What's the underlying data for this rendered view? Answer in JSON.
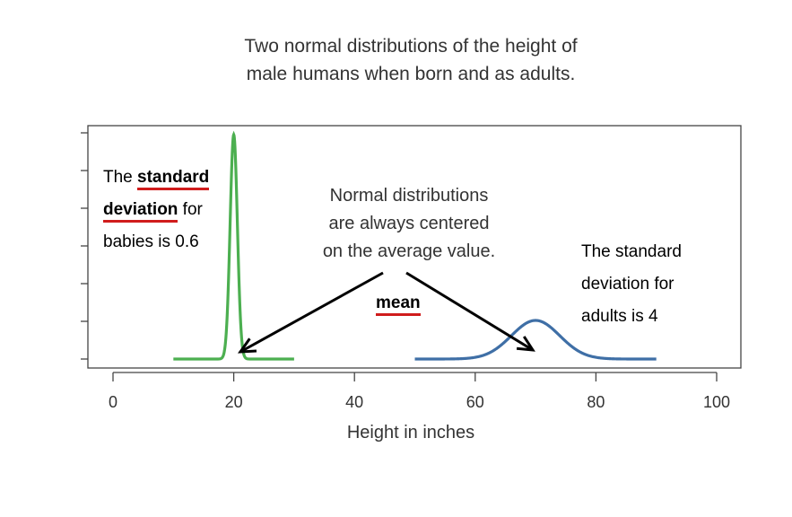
{
  "chart_data": {
    "type": "line",
    "title_lines": [
      "Two normal distributions of the height of",
      "male humans when born and as adults."
    ],
    "xlabel": "Height in inches",
    "ylabel": "",
    "xlim": [
      0,
      100
    ],
    "x_ticks": [
      0,
      20,
      40,
      60,
      80,
      100
    ],
    "grid": false,
    "series": [
      {
        "name": "",
        "mean": 20,
        "sd": 0.6,
        "x_range": [
          10,
          30
        ],
        "color": "#4caf50"
      },
      {
        "name": "",
        "mean": 70,
        "sd": 4,
        "x_range": [
          50,
          90
        ],
        "color": "#3f6fa6"
      }
    ],
    "annotations": {
      "babies": {
        "line1_plain": "The ",
        "line1_bold": "standard",
        "line2_bold": "deviation",
        "line2_plain": " for",
        "line3": "babies is 0.6"
      },
      "center_note": [
        "Normal distributions",
        "are always centered",
        "on the average value."
      ],
      "mean_label": "mean",
      "adults": [
        "The standard",
        "deviation for",
        "adults is 4"
      ]
    },
    "colors": {
      "axis": "#444444",
      "arrow": "#000000",
      "underline": "#d01c1c"
    }
  }
}
